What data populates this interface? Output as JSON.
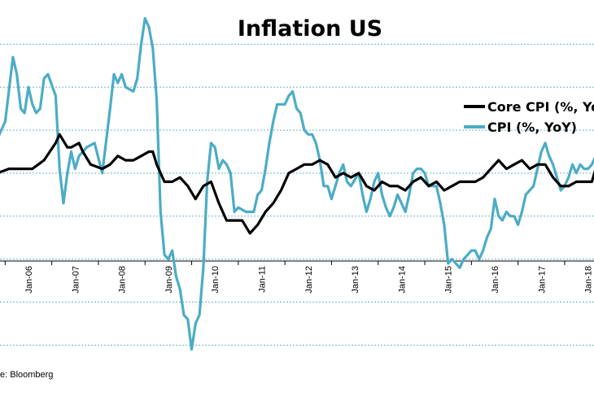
{
  "chart_data": {
    "type": "line",
    "title": "Inflation US",
    "x_tick_labels": [
      "Jan-06",
      "Jan-07",
      "Jan-08",
      "Jan-09",
      "Jan-10",
      "Jan-11",
      "Jan-12",
      "Jan-13",
      "Jan-14",
      "Jan-15",
      "Jan-16",
      "Jan-17",
      "Jan-18"
    ],
    "ylim": [
      -2.2,
      5.8
    ],
    "grid": "horizontal dashed",
    "legend_placement": "right",
    "series": [
      {
        "name": "Core CPI (%, YoY)",
        "color": "#000000",
        "points": [
          [
            "2005-02",
            2.0
          ],
          [
            "2005-05",
            2.0
          ],
          [
            "2005-08",
            2.1
          ],
          [
            "2005-11",
            2.1
          ],
          [
            "2006-02",
            2.1
          ],
          [
            "2006-05",
            2.3
          ],
          [
            "2006-08",
            2.7
          ],
          [
            "2006-09",
            2.9
          ],
          [
            "2006-11",
            2.6
          ],
          [
            "2006-12",
            2.6
          ],
          [
            "2007-02",
            2.7
          ],
          [
            "2007-03",
            2.5
          ],
          [
            "2007-05",
            2.2
          ],
          [
            "2007-08",
            2.1
          ],
          [
            "2007-10",
            2.2
          ],
          [
            "2007-12",
            2.4
          ],
          [
            "2008-02",
            2.3
          ],
          [
            "2008-04",
            2.3
          ],
          [
            "2008-06",
            2.4
          ],
          [
            "2008-08",
            2.5
          ],
          [
            "2008-09",
            2.5
          ],
          [
            "2008-10",
            2.2
          ],
          [
            "2008-12",
            1.8
          ],
          [
            "2009-02",
            1.8
          ],
          [
            "2009-04",
            1.9
          ],
          [
            "2009-06",
            1.7
          ],
          [
            "2009-08",
            1.4
          ],
          [
            "2009-10",
            1.7
          ],
          [
            "2009-12",
            1.8
          ],
          [
            "2010-02",
            1.3
          ],
          [
            "2010-04",
            0.9
          ],
          [
            "2010-06",
            0.9
          ],
          [
            "2010-08",
            0.9
          ],
          [
            "2010-10",
            0.6
          ],
          [
            "2010-12",
            0.8
          ],
          [
            "2011-02",
            1.1
          ],
          [
            "2011-04",
            1.3
          ],
          [
            "2011-06",
            1.6
          ],
          [
            "2011-08",
            2.0
          ],
          [
            "2011-10",
            2.1
          ],
          [
            "2011-12",
            2.2
          ],
          [
            "2012-02",
            2.2
          ],
          [
            "2012-04",
            2.3
          ],
          [
            "2012-06",
            2.2
          ],
          [
            "2012-08",
            1.9
          ],
          [
            "2012-10",
            2.0
          ],
          [
            "2012-12",
            1.9
          ],
          [
            "2013-02",
            2.0
          ],
          [
            "2013-04",
            1.7
          ],
          [
            "2013-06",
            1.6
          ],
          [
            "2013-08",
            1.8
          ],
          [
            "2013-10",
            1.7
          ],
          [
            "2013-12",
            1.7
          ],
          [
            "2014-02",
            1.6
          ],
          [
            "2014-04",
            1.8
          ],
          [
            "2014-06",
            1.9
          ],
          [
            "2014-08",
            1.7
          ],
          [
            "2014-10",
            1.8
          ],
          [
            "2014-12",
            1.6
          ],
          [
            "2015-02",
            1.7
          ],
          [
            "2015-04",
            1.8
          ],
          [
            "2015-06",
            1.8
          ],
          [
            "2015-08",
            1.8
          ],
          [
            "2015-10",
            1.9
          ],
          [
            "2015-12",
            2.1
          ],
          [
            "2016-02",
            2.3
          ],
          [
            "2016-04",
            2.1
          ],
          [
            "2016-06",
            2.2
          ],
          [
            "2016-08",
            2.3
          ],
          [
            "2016-10",
            2.1
          ],
          [
            "2016-12",
            2.2
          ],
          [
            "2017-02",
            2.2
          ],
          [
            "2017-04",
            1.9
          ],
          [
            "2017-06",
            1.7
          ],
          [
            "2017-08",
            1.7
          ],
          [
            "2017-10",
            1.8
          ],
          [
            "2017-12",
            1.8
          ],
          [
            "2018-02",
            1.8
          ],
          [
            "2018-03",
            2.1
          ]
        ]
      },
      {
        "name": "CPI (%, YoY)",
        "color": "#4bacc6",
        "points": [
          [
            "2005-02",
            3.0
          ],
          [
            "2005-05",
            2.8
          ],
          [
            "2005-07",
            3.2
          ],
          [
            "2005-09",
            4.7
          ],
          [
            "2005-10",
            4.3
          ],
          [
            "2005-11",
            3.5
          ],
          [
            "2005-12",
            3.4
          ],
          [
            "2006-01",
            4.0
          ],
          [
            "2006-02",
            3.6
          ],
          [
            "2006-03",
            3.4
          ],
          [
            "2006-04",
            3.5
          ],
          [
            "2006-05",
            4.2
          ],
          [
            "2006-06",
            4.3
          ],
          [
            "2006-08",
            3.8
          ],
          [
            "2006-09",
            2.1
          ],
          [
            "2006-10",
            1.3
          ],
          [
            "2006-11",
            2.0
          ],
          [
            "2006-12",
            2.5
          ],
          [
            "2007-01",
            2.1
          ],
          [
            "2007-02",
            2.4
          ],
          [
            "2007-04",
            2.6
          ],
          [
            "2007-06",
            2.7
          ],
          [
            "2007-08",
            2.0
          ],
          [
            "2007-10",
            3.5
          ],
          [
            "2007-11",
            4.3
          ],
          [
            "2007-12",
            4.1
          ],
          [
            "2008-01",
            4.3
          ],
          [
            "2008-02",
            4.0
          ],
          [
            "2008-04",
            3.9
          ],
          [
            "2008-05",
            4.2
          ],
          [
            "2008-06",
            5.0
          ],
          [
            "2008-07",
            5.6
          ],
          [
            "2008-08",
            5.4
          ],
          [
            "2008-09",
            4.9
          ],
          [
            "2008-10",
            3.7
          ],
          [
            "2008-11",
            1.1
          ],
          [
            "2008-12",
            0.1
          ],
          [
            "2009-01",
            0.0
          ],
          [
            "2009-02",
            0.2
          ],
          [
            "2009-03",
            -0.4
          ],
          [
            "2009-04",
            -0.7
          ],
          [
            "2009-05",
            -1.3
          ],
          [
            "2009-06",
            -1.4
          ],
          [
            "2009-07",
            -2.1
          ],
          [
            "2009-08",
            -1.5
          ],
          [
            "2009-09",
            -1.3
          ],
          [
            "2009-10",
            -0.2
          ],
          [
            "2009-11",
            1.8
          ],
          [
            "2009-12",
            2.7
          ],
          [
            "2010-01",
            2.6
          ],
          [
            "2010-02",
            2.1
          ],
          [
            "2010-03",
            2.3
          ],
          [
            "2010-04",
            2.2
          ],
          [
            "2010-05",
            2.0
          ],
          [
            "2010-06",
            1.1
          ],
          [
            "2010-07",
            1.2
          ],
          [
            "2010-09",
            1.1
          ],
          [
            "2010-11",
            1.1
          ],
          [
            "2010-12",
            1.5
          ],
          [
            "2011-01",
            1.6
          ],
          [
            "2011-02",
            2.1
          ],
          [
            "2011-03",
            2.7
          ],
          [
            "2011-04",
            3.2
          ],
          [
            "2011-05",
            3.6
          ],
          [
            "2011-07",
            3.6
          ],
          [
            "2011-08",
            3.8
          ],
          [
            "2011-09",
            3.9
          ],
          [
            "2011-10",
            3.5
          ],
          [
            "2011-11",
            3.4
          ],
          [
            "2011-12",
            3.0
          ],
          [
            "2012-01",
            2.9
          ],
          [
            "2012-02",
            2.9
          ],
          [
            "2012-03",
            2.7
          ],
          [
            "2012-04",
            2.3
          ],
          [
            "2012-05",
            1.7
          ],
          [
            "2012-06",
            1.7
          ],
          [
            "2012-07",
            1.4
          ],
          [
            "2012-08",
            1.7
          ],
          [
            "2012-09",
            2.0
          ],
          [
            "2012-10",
            2.2
          ],
          [
            "2012-11",
            1.8
          ],
          [
            "2012-12",
            1.7
          ],
          [
            "2013-02",
            2.0
          ],
          [
            "2013-03",
            1.5
          ],
          [
            "2013-04",
            1.1
          ],
          [
            "2013-05",
            1.4
          ],
          [
            "2013-06",
            1.8
          ],
          [
            "2013-07",
            2.0
          ],
          [
            "2013-08",
            1.5
          ],
          [
            "2013-09",
            1.2
          ],
          [
            "2013-10",
            1.0
          ],
          [
            "2013-11",
            1.2
          ],
          [
            "2013-12",
            1.5
          ],
          [
            "2014-02",
            1.1
          ],
          [
            "2014-03",
            1.5
          ],
          [
            "2014-04",
            2.0
          ],
          [
            "2014-05",
            2.1
          ],
          [
            "2014-06",
            2.1
          ],
          [
            "2014-07",
            2.0
          ],
          [
            "2014-08",
            1.7
          ],
          [
            "2014-09",
            1.7
          ],
          [
            "2014-10",
            1.7
          ],
          [
            "2014-11",
            1.3
          ],
          [
            "2014-12",
            0.8
          ],
          [
            "2015-01",
            -0.1
          ],
          [
            "2015-02",
            0.0
          ],
          [
            "2015-03",
            -0.1
          ],
          [
            "2015-04",
            -0.2
          ],
          [
            "2015-05",
            0.0
          ],
          [
            "2015-06",
            0.1
          ],
          [
            "2015-07",
            0.2
          ],
          [
            "2015-08",
            0.2
          ],
          [
            "2015-09",
            0.0
          ],
          [
            "2015-10",
            0.2
          ],
          [
            "2015-11",
            0.5
          ],
          [
            "2015-12",
            0.7
          ],
          [
            "2016-01",
            1.4
          ],
          [
            "2016-02",
            1.0
          ],
          [
            "2016-03",
            0.9
          ],
          [
            "2016-04",
            1.1
          ],
          [
            "2016-05",
            1.0
          ],
          [
            "2016-06",
            1.0
          ],
          [
            "2016-07",
            0.8
          ],
          [
            "2016-08",
            1.1
          ],
          [
            "2016-09",
            1.5
          ],
          [
            "2016-10",
            1.6
          ],
          [
            "2016-11",
            1.7
          ],
          [
            "2016-12",
            2.1
          ],
          [
            "2017-01",
            2.5
          ],
          [
            "2017-02",
            2.7
          ],
          [
            "2017-03",
            2.4
          ],
          [
            "2017-04",
            2.2
          ],
          [
            "2017-05",
            1.9
          ],
          [
            "2017-06",
            1.6
          ],
          [
            "2017-07",
            1.7
          ],
          [
            "2017-08",
            1.9
          ],
          [
            "2017-09",
            2.2
          ],
          [
            "2017-10",
            2.0
          ],
          [
            "2017-11",
            2.2
          ],
          [
            "2017-12",
            2.1
          ],
          [
            "2018-01",
            2.1
          ],
          [
            "2018-02",
            2.2
          ],
          [
            "2018-03",
            2.4
          ]
        ]
      }
    ]
  },
  "source_label": "e:  Bloomberg"
}
